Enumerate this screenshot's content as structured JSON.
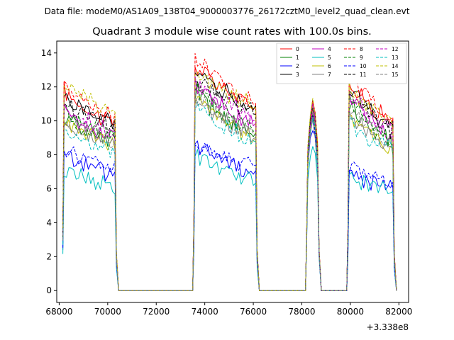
{
  "chart_data": {
    "type": "line",
    "suptitle": "Data file: modeM0/AS1A09_138T04_9000003776_26172cztM0_level2_quad_clean.evt",
    "title": "Quadrant 3 module wise count rates with 100.0s bins.",
    "xlabel": "",
    "ylabel": "",
    "x_offset_label": "+3.338e8",
    "xlim": [
      67900,
      82400
    ],
    "ylim": [
      -0.7,
      14.7
    ],
    "x_ticks": [
      68000,
      70000,
      72000,
      74000,
      76000,
      78000,
      80000,
      82000
    ],
    "x_tick_labels": [
      "68000",
      "70000",
      "72000",
      "74000",
      "76000",
      "78000",
      "80000",
      "82000"
    ],
    "y_ticks": [
      0,
      2,
      4,
      6,
      8,
      10,
      12,
      14
    ],
    "y_tick_labels": [
      "0",
      "2",
      "4",
      "6",
      "8",
      "10",
      "12",
      "14"
    ],
    "segments": [
      {
        "start": 68200,
        "end": 70300
      },
      {
        "start": 73600,
        "end": 76100
      },
      {
        "start": 78250,
        "end": 78650
      },
      {
        "start": 79950,
        "end": 81750
      }
    ],
    "legend_position": "upper-right",
    "series": [
      {
        "name": "0",
        "color": "#ff0000",
        "dash": false,
        "levels": [
          [
            11.8,
            9.8
          ],
          [
            13.3,
            10.8
          ],
          [
            11.0
          ],
          [
            12.2,
            10.0
          ]
        ]
      },
      {
        "name": "1",
        "color": "#008000",
        "dash": false,
        "levels": [
          [
            10.2,
            8.8
          ],
          [
            11.8,
            9.2
          ],
          [
            10.4
          ],
          [
            11.0,
            8.6
          ]
        ]
      },
      {
        "name": "2",
        "color": "#0000ff",
        "dash": false,
        "levels": [
          [
            8.0,
            6.8
          ],
          [
            8.7,
            7.0
          ],
          [
            9.5
          ],
          [
            7.0,
            6.1
          ]
        ]
      },
      {
        "name": "3",
        "color": "#000000",
        "dash": false,
        "levels": [
          [
            11.4,
            9.8
          ],
          [
            12.9,
            10.8
          ],
          [
            11.0
          ],
          [
            12.0,
            9.6
          ]
        ]
      },
      {
        "name": "4",
        "color": "#bf00bf",
        "dash": false,
        "levels": [
          [
            10.6,
            9.0
          ],
          [
            12.2,
            9.8
          ],
          [
            10.6
          ],
          [
            11.6,
            9.0
          ]
        ]
      },
      {
        "name": "5",
        "color": "#00bfbf",
        "dash": false,
        "levels": [
          [
            7.2,
            6.1
          ],
          [
            7.9,
            6.3
          ],
          [
            9.0
          ],
          [
            6.6,
            5.8
          ]
        ]
      },
      {
        "name": "6",
        "color": "#bfbf00",
        "dash": false,
        "levels": [
          [
            10.0,
            8.6
          ],
          [
            11.4,
            8.9
          ],
          [
            10.2
          ],
          [
            10.6,
            8.2
          ]
        ]
      },
      {
        "name": "7",
        "color": "#808080",
        "dash": false,
        "levels": [
          [
            9.8,
            8.8
          ],
          [
            11.2,
            9.0
          ],
          [
            10.0
          ],
          [
            10.4,
            8.4
          ]
        ]
      },
      {
        "name": "8",
        "color": "#ff0000",
        "dash": true,
        "levels": [
          [
            12.0,
            10.2
          ],
          [
            13.9,
            11.0
          ],
          [
            11.2
          ],
          [
            12.7,
            10.1
          ]
        ]
      },
      {
        "name": "9",
        "color": "#008000",
        "dash": true,
        "levels": [
          [
            10.4,
            9.0
          ],
          [
            12.0,
            9.4
          ],
          [
            10.5
          ],
          [
            11.2,
            8.8
          ]
        ]
      },
      {
        "name": "10",
        "color": "#0000ff",
        "dash": true,
        "levels": [
          [
            8.4,
            7.2
          ],
          [
            8.4,
            7.4
          ],
          [
            9.8
          ],
          [
            7.4,
            6.4
          ]
        ]
      },
      {
        "name": "11",
        "color": "#000000",
        "dash": true,
        "levels": [
          [
            11.2,
            9.6
          ],
          [
            12.6,
            10.4
          ],
          [
            10.8
          ],
          [
            11.8,
            9.4
          ]
        ]
      },
      {
        "name": "12",
        "color": "#bf00bf",
        "dash": true,
        "levels": [
          [
            10.8,
            9.2
          ],
          [
            12.4,
            10.0
          ],
          [
            10.7
          ],
          [
            11.7,
            9.2
          ]
        ]
      },
      {
        "name": "13",
        "color": "#00bfbf",
        "dash": true,
        "levels": [
          [
            9.2,
            8.2
          ],
          [
            10.8,
            8.8
          ],
          [
            10.0
          ],
          [
            10.0,
            8.2
          ]
        ]
      },
      {
        "name": "14",
        "color": "#bfbf00",
        "dash": true,
        "levels": [
          [
            12.3,
            10.6
          ],
          [
            12.9,
            10.8
          ],
          [
            11.3
          ],
          [
            11.8,
            9.8
          ]
        ]
      },
      {
        "name": "15",
        "color": "#808080",
        "dash": true,
        "levels": [
          [
            10.0,
            8.7
          ],
          [
            11.4,
            9.2
          ],
          [
            10.2
          ],
          [
            10.8,
            8.6
          ]
        ]
      }
    ]
  }
}
